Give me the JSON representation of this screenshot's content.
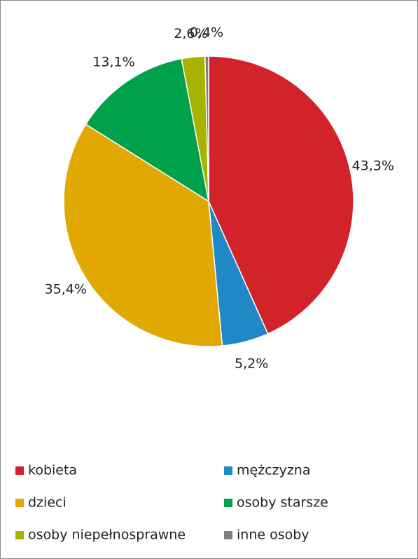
{
  "chart_data": {
    "type": "pie",
    "categories": [
      "kobieta",
      "mężczyzna",
      "dzieci",
      "osoby starsze",
      "osoby niepełnosprawne",
      "inne osoby"
    ],
    "values": [
      43.3,
      5.2,
      35.4,
      13.1,
      2.6,
      0.4
    ],
    "value_labels": [
      "43,3%",
      "5,2%",
      "35,4%",
      "13,1%",
      "2,6%",
      "0,4%"
    ],
    "colors": [
      "#d2232a",
      "#1f88c6",
      "#e0a800",
      "#00a14b",
      "#a6b300",
      "#7f7f7f"
    ],
    "legend": "bottom"
  }
}
